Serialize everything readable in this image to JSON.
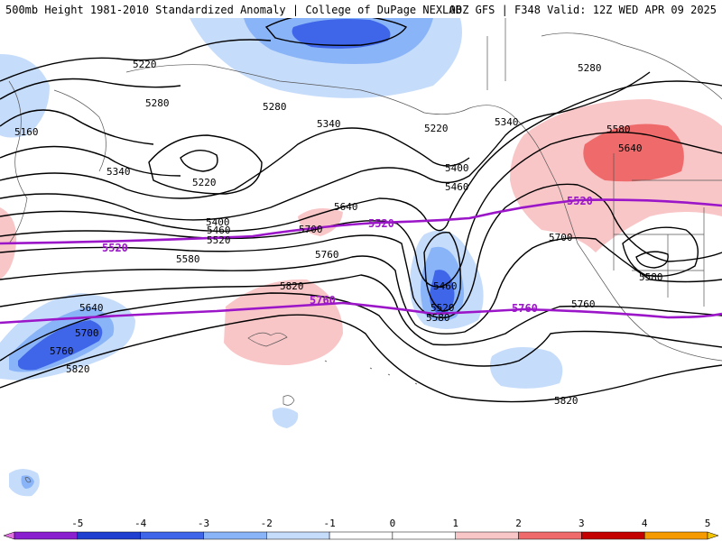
{
  "header": {
    "left": "500mb Height 1981-2010 Standardized Anomaly | College of DuPage NEXLAB",
    "right": "00Z GFS | F348 Valid: 12Z WED APR 09 2025"
  },
  "contour_labels": [
    {
      "id": "c5220a",
      "text": "5220"
    },
    {
      "id": "c5220b",
      "text": "5220"
    },
    {
      "id": "c5220c",
      "text": "5220"
    },
    {
      "id": "c5280a",
      "text": "5280"
    },
    {
      "id": "c5280b",
      "text": "5280"
    },
    {
      "id": "c5280c",
      "text": "5280"
    },
    {
      "id": "c5160",
      "text": "5160"
    },
    {
      "id": "c5340a",
      "text": "5340"
    },
    {
      "id": "c5340b",
      "text": "5340"
    },
    {
      "id": "c5340c",
      "text": "5340"
    },
    {
      "id": "c5400a",
      "text": "5400"
    },
    {
      "id": "c5400b",
      "text": "5400"
    },
    {
      "id": "c5460a",
      "text": "5460"
    },
    {
      "id": "c5460b",
      "text": "5460"
    },
    {
      "id": "c5460c",
      "text": "5460"
    },
    {
      "id": "c5520a",
      "text": "5520"
    },
    {
      "id": "c5520b",
      "text": "5520"
    },
    {
      "id": "c5580a",
      "text": "5580"
    },
    {
      "id": "c5580b",
      "text": "5580"
    },
    {
      "id": "c5580c",
      "text": "5580"
    },
    {
      "id": "c5580d",
      "text": "5580"
    },
    {
      "id": "c5640a",
      "text": "5640"
    },
    {
      "id": "c5640b",
      "text": "5640"
    },
    {
      "id": "c5640c",
      "text": "5640"
    },
    {
      "id": "c5700a",
      "text": "5700"
    },
    {
      "id": "c5700b",
      "text": "5700"
    },
    {
      "id": "c5700c",
      "text": "5700"
    },
    {
      "id": "c5760a",
      "text": "5760"
    },
    {
      "id": "c5760b",
      "text": "5760"
    },
    {
      "id": "c5760c",
      "text": "5760"
    },
    {
      "id": "c5820a",
      "text": "5820"
    },
    {
      "id": "c5820b",
      "text": "5820"
    },
    {
      "id": "c5820c",
      "text": "5820"
    }
  ],
  "reference_labels": [
    {
      "id": "p5520a",
      "text": "5520"
    },
    {
      "id": "p5520b",
      "text": "5520"
    },
    {
      "id": "p5520c",
      "text": "5520"
    },
    {
      "id": "p5760a",
      "text": "5760"
    },
    {
      "id": "p5760b",
      "text": "5760"
    }
  ],
  "colorbar": {
    "ticks": [
      "-5",
      "-4",
      "-3",
      "-2",
      "-1",
      "0",
      "1",
      "2",
      "3",
      "4",
      "5"
    ],
    "colors": [
      "#8a1fd0",
      "#1f3fd0",
      "#3f66e8",
      "#8ab4f8",
      "#c6dcfb",
      "#ffffff",
      "#ffffff",
      "#f9c6c8",
      "#ef6b6b",
      "#c40000",
      "#f59a00"
    ]
  },
  "anomaly_colors": {
    "neg_light": "#c6dcfb",
    "neg_mid": "#8ab4f8",
    "neg_strong": "#3f66e8",
    "pos_light": "#f9c6c8",
    "pos_mid": "#ef6b6b"
  },
  "reference_contour_color": "#9b16c8"
}
